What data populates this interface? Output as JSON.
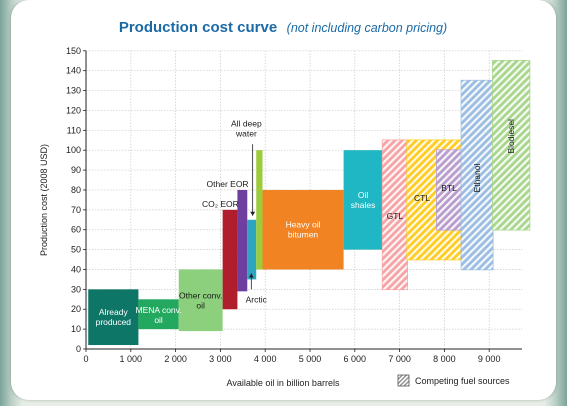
{
  "chart_data": {
    "type": "bar",
    "title": "Production cost curve",
    "subtitle": "(not including carbon pricing)",
    "xlabel": "Available oil in billion barrels",
    "ylabel": "Production cost (2008 USD)",
    "xlim": [
      0,
      9500
    ],
    "ylim": [
      0,
      150
    ],
    "xticks": [
      "0",
      "1 000",
      "2 000",
      "3 000",
      "4 000",
      "5 000",
      "6 000",
      "7 000",
      "8 000",
      "9 000"
    ],
    "xtick_values": [
      0,
      1000,
      2000,
      3000,
      4000,
      5000,
      6000,
      7000,
      8000,
      9000
    ],
    "yticks": [
      "0",
      "10",
      "20",
      "30",
      "40",
      "50",
      "60",
      "70",
      "80",
      "90",
      "100",
      "110",
      "120",
      "130",
      "140",
      "150"
    ],
    "ytick_values": [
      0,
      10,
      20,
      30,
      40,
      50,
      60,
      70,
      80,
      90,
      100,
      110,
      120,
      130,
      140,
      150
    ],
    "grid": true,
    "legend": "Competing fuel sources",
    "legend_position": "bottom-right",
    "bars": [
      {
        "label": "Already produced",
        "x0": 50,
        "x1": 1170,
        "y0": 2,
        "y1": 30,
        "color": "#0e7667",
        "text_color": "#ffffff",
        "hatched": false
      },
      {
        "label": "MENA conv. oil",
        "x0": 1170,
        "x1": 2070,
        "y0": 10,
        "y1": 25,
        "color": "#23a860",
        "text_color": "#ffffff",
        "hatched": false
      },
      {
        "label": "Other conv. oil",
        "x0": 2070,
        "x1": 3050,
        "y0": 9,
        "y1": 40,
        "color": "#8ccf7c",
        "text_color": "#1a1a1a",
        "hatched": false
      },
      {
        "label": "CO2 EOR",
        "x0": 3050,
        "x1": 3380,
        "y0": 20,
        "y1": 70,
        "color": "#b01e2e",
        "text_color": "#1a1a1a",
        "hatched": false
      },
      {
        "label": "Other EOR",
        "x0": 3380,
        "x1": 3600,
        "y0": 29,
        "y1": 80,
        "color": "#6f3fa0",
        "text_color": "#1a1a1a",
        "hatched": false
      },
      {
        "label": "Arctic",
        "x0": 3600,
        "x1": 3800,
        "y0": 35,
        "y1": 65,
        "color": "#2ea5be",
        "text_color": "#1a1a1a",
        "hatched": false
      },
      {
        "label": "All deep water",
        "x0": 3800,
        "x1": 3940,
        "y0": 40,
        "y1": 100,
        "color": "#9ccc3c",
        "text_color": "#1a1a1a",
        "hatched": false
      },
      {
        "label": "Heavy oil bitumen",
        "x0": 3940,
        "x1": 5750,
        "y0": 40,
        "y1": 80,
        "color": "#f28322",
        "text_color": "#ffffff",
        "hatched": false
      },
      {
        "label": "Oil shales",
        "x0": 5750,
        "x1": 6620,
        "y0": 50,
        "y1": 100,
        "color": "#1fb7c3",
        "text_color": "#ffffff",
        "hatched": false
      },
      {
        "label": "GTL",
        "x0": 6620,
        "x1": 7170,
        "y0": 30,
        "y1": 105,
        "color": "#f6a3a6",
        "text_color": "#1a1a1a",
        "hatched": true
      },
      {
        "label": "CTL",
        "x0": 7170,
        "x1": 8380,
        "y0": 45,
        "y1": 105,
        "color": "#ffcc22",
        "text_color": "#1a1a1a",
        "hatched": true
      },
      {
        "label": "BTL",
        "x0": 7830,
        "x1": 8380,
        "y0": 60,
        "y1": 100,
        "color": "#b79ccc",
        "text_color": "#1a1a1a",
        "hatched": true
      },
      {
        "label": "Ethanol",
        "x0": 8380,
        "x1": 9080,
        "y0": 40,
        "y1": 135,
        "color": "#9bbde2",
        "text_color": "#1a1a1a",
        "hatched": true
      },
      {
        "label": "Biodiesel",
        "x0": 9080,
        "x1": 9900,
        "y0": 60,
        "y1": 145,
        "color": "#a8d68c",
        "text_color": "#1a1a1a",
        "hatched": true
      }
    ]
  }
}
